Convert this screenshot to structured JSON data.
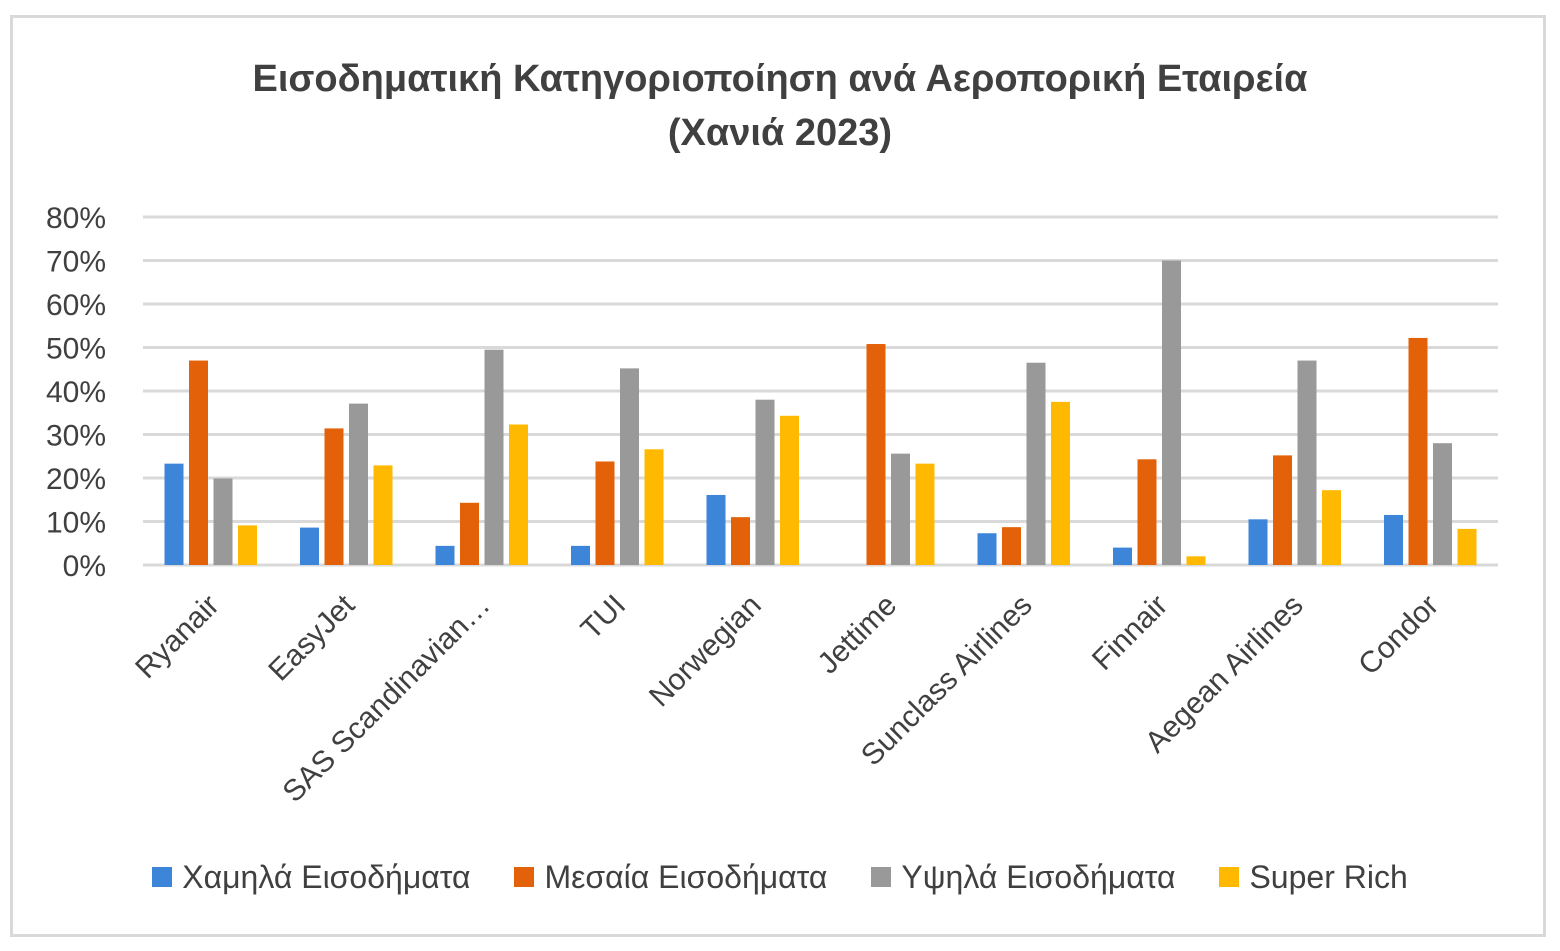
{
  "chart_data": {
    "type": "bar",
    "title": "Εισοδηματική Κατηγοριοποίηση ανά Αεροπορική Εταιρεία",
    "subtitle": "(Χανιά 2023)",
    "categories": [
      "Ryanair",
      "EasyJet",
      "SAS Scandinavian…",
      "TUI",
      "Norwegian",
      "Jettime",
      "Sunclass Airlines",
      "Finnair",
      "Aegean Airlines",
      "Condor"
    ],
    "series": [
      {
        "name": "Χαμηλά Εισοδήματα",
        "color": "#3d85d8",
        "values": [
          23.3,
          8.6,
          4.4,
          4.4,
          16.1,
          0,
          7.3,
          4.0,
          10.5,
          11.5
        ]
      },
      {
        "name": "Μεσαία Εισοδήματα",
        "color": "#e36209",
        "values": [
          47.0,
          31.4,
          14.3,
          23.8,
          11.0,
          50.8,
          8.7,
          24.3,
          25.2,
          52.2
        ]
      },
      {
        "name": "Υψηλά Εισοδήματα",
        "color": "#999999",
        "values": [
          19.9,
          37.1,
          49.5,
          45.2,
          38.0,
          25.6,
          46.5,
          70.0,
          47.0,
          28.0
        ]
      },
      {
        "name": "Super Rich",
        "color": "#ffb900",
        "values": [
          9.1,
          22.9,
          32.3,
          26.6,
          34.3,
          23.3,
          37.5,
          2.0,
          17.2,
          8.3
        ]
      }
    ],
    "ylim": [
      0,
      80
    ],
    "yticks": [
      "0%",
      "10%",
      "20%",
      "30%",
      "40%",
      "50%",
      "60%",
      "70%",
      "80%"
    ],
    "xlabel": "",
    "ylabel": "",
    "grid": true,
    "legend": "bottom"
  }
}
